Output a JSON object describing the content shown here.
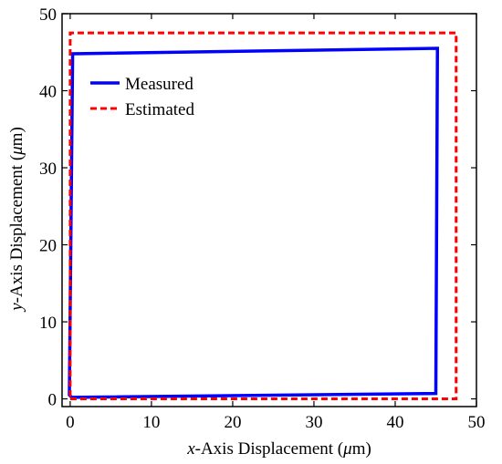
{
  "chart_data": {
    "type": "line",
    "title": "",
    "xlabel": {
      "var": "x",
      "rest": "-Axis Displacement (",
      "unit_greek": "μ",
      "unit_rest": "m)"
    },
    "ylabel": {
      "var": "y",
      "rest": "-Axis Displacement (",
      "unit_greek": "μ",
      "unit_rest": "m)"
    },
    "xlim": [
      -1,
      50
    ],
    "ylim": [
      -1,
      50
    ],
    "x_ticks": [
      0,
      10,
      20,
      30,
      40,
      50
    ],
    "y_ticks": [
      0,
      10,
      20,
      30,
      40,
      50
    ],
    "x_tick_labels": [
      "0",
      "10",
      "20",
      "30",
      "40",
      "50"
    ],
    "y_tick_labels": [
      "0",
      "10",
      "20",
      "30",
      "40",
      "50"
    ],
    "grid": false,
    "legend_position": "top-left",
    "series": [
      {
        "name": "Measured",
        "color": "#0000ff",
        "style": "solid",
        "x": [
          0.2,
          45.0,
          45.2,
          0.3,
          -0.1,
          0.2
        ],
        "y": [
          0.2,
          0.7,
          45.5,
          44.8,
          0.5,
          0.2
        ]
      },
      {
        "name": "Estimated",
        "color": "#ff0000",
        "style": "dashed",
        "x": [
          0,
          47.5,
          47.5,
          0,
          0
        ],
        "y": [
          0,
          0,
          47.5,
          47.5,
          0
        ]
      }
    ]
  }
}
